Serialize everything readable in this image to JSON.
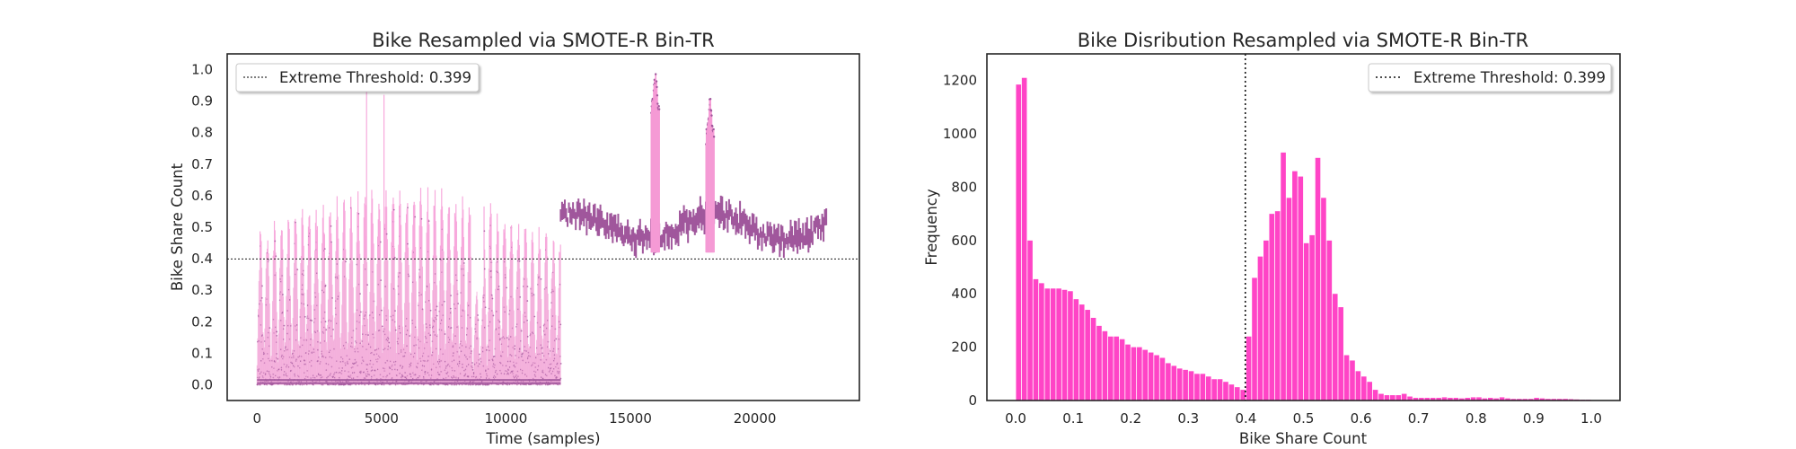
{
  "chart_data": [
    {
      "type": "scatter",
      "title": "Bike Resampled via SMOTE-R Bin-TR",
      "xlabel": "Time (samples)",
      "ylabel": "Bike Share Count",
      "xlim": [
        -1200,
        24200
      ],
      "ylim": [
        -0.05,
        1.05
      ],
      "xticks": [
        0,
        5000,
        10000,
        15000,
        20000
      ],
      "yticks": [
        0.0,
        0.1,
        0.2,
        0.3,
        0.4,
        0.5,
        0.6,
        0.7,
        0.8,
        0.9,
        1.0
      ],
      "grid": false,
      "legend": {
        "placement": "top-left",
        "label": "Extreme Threshold: 0.399"
      },
      "threshold": 0.399,
      "colors": {
        "low": "#a0579c",
        "high_fill": "#f7a9dc",
        "high_dot": "#a0579c",
        "threshold": "#333333"
      },
      "original_range": [
        0,
        12200
      ],
      "synthetic_range": [
        12200,
        22900
      ],
      "spikes": [
        {
          "x": 4400,
          "peak": 0.93
        },
        {
          "x": 5100,
          "peak": 0.92
        },
        {
          "x": 16000,
          "peak": 1.0
        },
        {
          "x": 18200,
          "peak": 0.92
        }
      ]
    },
    {
      "type": "bar",
      "title": "Bike Disribution Resampled via SMOTE-R Bin-TR",
      "xlabel": "Bike Share Count",
      "ylabel": "Frequency",
      "xlim": [
        -0.05,
        1.05
      ],
      "ylim": [
        0,
        1300
      ],
      "xticks": [
        0.0,
        0.1,
        0.2,
        0.3,
        0.4,
        0.5,
        0.6,
        0.7,
        0.8,
        0.9,
        1.0
      ],
      "yticks": [
        0,
        200,
        400,
        600,
        800,
        1000,
        1200
      ],
      "grid": false,
      "legend": {
        "placement": "top-right",
        "label": "Extreme Threshold: 0.399"
      },
      "threshold": 0.399,
      "bar_color": "#ff44c6",
      "bin_width": 0.01,
      "bin_start": 0.0,
      "values": [
        1185,
        1210,
        600,
        455,
        440,
        420,
        420,
        420,
        415,
        410,
        380,
        360,
        340,
        310,
        280,
        260,
        240,
        240,
        230,
        210,
        200,
        200,
        190,
        180,
        170,
        160,
        140,
        130,
        120,
        115,
        110,
        100,
        100,
        90,
        80,
        80,
        70,
        60,
        50,
        40,
        240,
        460,
        540,
        600,
        700,
        710,
        930,
        760,
        860,
        840,
        590,
        620,
        910,
        760,
        600,
        400,
        350,
        170,
        150,
        110,
        90,
        70,
        40,
        25,
        20,
        20,
        20,
        25,
        15,
        10,
        10,
        10,
        10,
        10,
        12,
        10,
        10,
        8,
        10,
        12,
        12,
        8,
        10,
        8,
        12,
        8,
        6,
        6,
        6,
        6,
        10,
        8,
        6,
        6,
        6,
        6,
        5,
        4,
        3,
        3
      ]
    }
  ]
}
